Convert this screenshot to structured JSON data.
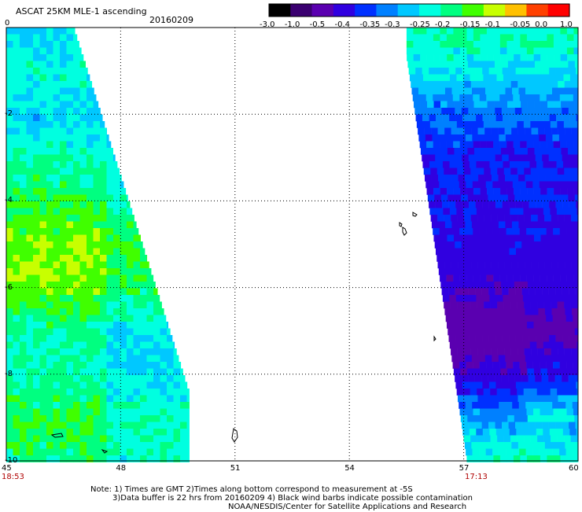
{
  "header": {
    "title": "ASCAT 25KM MLE-1 ascending",
    "date": "20160209"
  },
  "colorbar": {
    "labels": [
      "-3.0",
      "-1.0",
      "-0.5",
      "-0.4",
      "-0.35",
      "-0.3",
      "-0.25",
      "-0.2",
      "-0.15",
      "-0.1",
      "-0.05",
      "0.0",
      "1.0"
    ],
    "colors": [
      "#000000",
      "#3a0070",
      "#5a00b0",
      "#3000e0",
      "#0030ff",
      "#0080ff",
      "#00c8ff",
      "#00ffe0",
      "#00ff80",
      "#40ff00",
      "#c8ff00",
      "#ffc000",
      "#ff4000",
      "#ff0000"
    ]
  },
  "chart_data": {
    "type": "heatmap",
    "title": "ASCAT 25KM MLE-1 ascending",
    "x_ticks": [
      "45",
      "48",
      "51",
      "54",
      "57",
      "60"
    ],
    "y_ticks": [
      "0",
      "-2",
      "-4",
      "-6",
      "-8",
      "-10"
    ],
    "xlim": [
      45,
      60
    ],
    "ylim": [
      -10,
      0
    ],
    "grid": true,
    "swath_times": [
      "18:53",
      "17:13"
    ],
    "swaths": [
      {
        "time": "18:53",
        "rows": [
          {
            "lat": 0,
            "value": -0.25
          },
          {
            "lat": -1,
            "value": -0.22
          },
          {
            "lat": -2,
            "value": -0.27
          },
          {
            "lat": -3,
            "value": -0.2
          },
          {
            "lat": -4,
            "value": -0.15
          },
          {
            "lat": -5,
            "value": -0.1
          },
          {
            "lat": -6,
            "value": -0.12
          },
          {
            "lat": -7,
            "value": -0.2
          },
          {
            "lat": -8,
            "value": -0.2
          },
          {
            "lat": -9,
            "value": -0.15
          },
          {
            "lat": -10,
            "value": -0.18
          }
        ]
      },
      {
        "time": "17:13",
        "rows": [
          {
            "lat": 0,
            "value": -0.2
          },
          {
            "lat": -1,
            "value": -0.25
          },
          {
            "lat": -2,
            "value": -0.35
          },
          {
            "lat": -3,
            "value": -0.4
          },
          {
            "lat": -4,
            "value": -0.4
          },
          {
            "lat": -5,
            "value": -0.42
          },
          {
            "lat": -6,
            "value": -0.5
          },
          {
            "lat": -7,
            "value": -0.6
          },
          {
            "lat": -8,
            "value": -0.45
          },
          {
            "lat": -9,
            "value": -0.3
          },
          {
            "lat": -10,
            "value": -0.2
          }
        ]
      }
    ]
  },
  "footer": {
    "line1": "Note: 1) Times are GMT 2)Times along bottom correspond to measurement at -5S",
    "line2": "3)Data buffer is 22 hrs from 20160209 4) Black wind barbs indicate possible contamination",
    "line3": "NOAA/NESDIS/Center for Satellite Applications and Research"
  }
}
